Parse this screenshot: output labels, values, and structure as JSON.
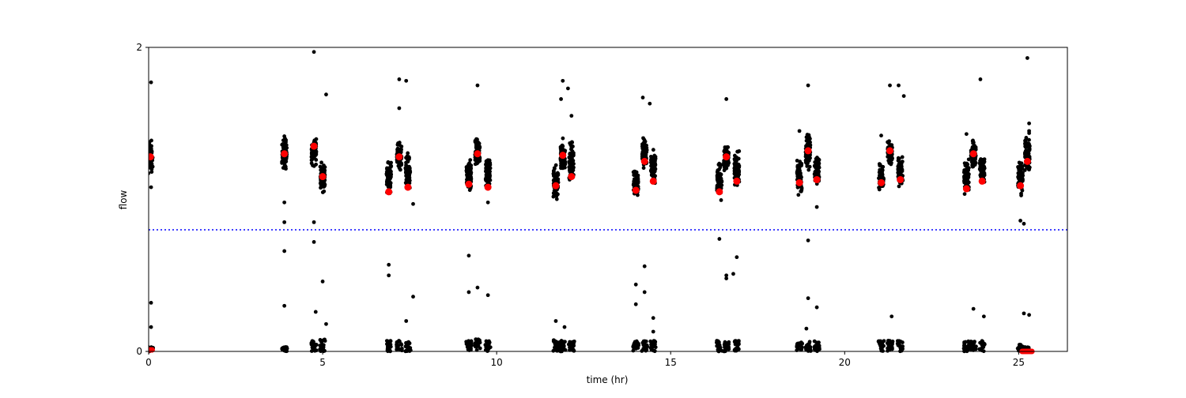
{
  "chart_data": {
    "type": "scatter",
    "title": "",
    "xlabel": "time (hr)",
    "ylabel": "flow",
    "xlim": [
      0,
      26.4
    ],
    "ylim": [
      0,
      2
    ],
    "xticks": [
      0,
      5,
      10,
      15,
      20,
      25
    ],
    "yticks": [
      0,
      2
    ],
    "grid": false,
    "threshold": {
      "y": 0.8,
      "style": "dotted",
      "color": "#0000ff"
    },
    "colors": {
      "raw": "#000000",
      "mean": "#ff0000",
      "axis": "#000000"
    },
    "clusters": [
      {
        "t": 0.05,
        "low": 0,
        "high_mean": 1.28,
        "high_spread": 0.06,
        "mean": 1.28
      },
      {
        "t": 3.9,
        "low": 0,
        "high_mean": 1.3,
        "high_spread": 0.06,
        "mean": 1.3
      },
      {
        "t": 4.75,
        "low": 0.04,
        "high_mean": 1.32,
        "high_spread": 0.05,
        "mean": 1.35
      },
      {
        "t": 5.0,
        "low": 0.05,
        "high_mean": 1.15,
        "high_spread": 0.05,
        "mean": 1.15
      },
      {
        "t": 6.9,
        "low": 0.04,
        "high_mean": 1.15,
        "high_spread": 0.06,
        "mean": 1.05
      },
      {
        "t": 7.2,
        "low": 0.04,
        "high_mean": 1.28,
        "high_spread": 0.05,
        "mean": 1.28
      },
      {
        "t": 7.45,
        "low": 0.04,
        "high_mean": 1.18,
        "high_spread": 0.06,
        "mean": 1.08
      },
      {
        "t": 9.2,
        "low": 0.04,
        "high_mean": 1.15,
        "high_spread": 0.06,
        "mean": 1.1
      },
      {
        "t": 9.45,
        "low": 0.05,
        "high_mean": 1.3,
        "high_spread": 0.06,
        "mean": 1.3
      },
      {
        "t": 9.75,
        "low": 0.04,
        "high_mean": 1.18,
        "high_spread": 0.06,
        "mean": 1.08
      },
      {
        "t": 11.7,
        "low": 0.05,
        "high_mean": 1.1,
        "high_spread": 0.06,
        "mean": 1.09
      },
      {
        "t": 11.9,
        "low": 0.04,
        "high_mean": 1.28,
        "high_spread": 0.06,
        "mean": 1.29
      },
      {
        "t": 12.15,
        "low": 0.04,
        "high_mean": 1.25,
        "high_spread": 0.07,
        "mean": 1.15
      },
      {
        "t": 14.0,
        "low": 0.04,
        "high_mean": 1.12,
        "high_spread": 0.06,
        "mean": 1.06
      },
      {
        "t": 14.25,
        "low": 0.04,
        "high_mean": 1.3,
        "high_spread": 0.06,
        "mean": 1.25
      },
      {
        "t": 14.5,
        "low": 0.04,
        "high_mean": 1.22,
        "high_spread": 0.06,
        "mean": 1.12
      },
      {
        "t": 16.4,
        "low": 0.04,
        "high_mean": 1.12,
        "high_spread": 0.06,
        "mean": 1.05
      },
      {
        "t": 16.6,
        "low": 0.04,
        "high_mean": 1.28,
        "high_spread": 0.05,
        "mean": 1.28
      },
      {
        "t": 16.9,
        "low": 0.04,
        "high_mean": 1.2,
        "high_spread": 0.06,
        "mean": 1.12
      },
      {
        "t": 18.7,
        "low": 0.04,
        "high_mean": 1.15,
        "high_spread": 0.07,
        "mean": 1.11
      },
      {
        "t": 18.95,
        "low": 0.04,
        "high_mean": 1.32,
        "high_spread": 0.06,
        "mean": 1.32
      },
      {
        "t": 19.2,
        "low": 0.04,
        "high_mean": 1.2,
        "high_spread": 0.06,
        "mean": 1.13
      },
      {
        "t": 21.05,
        "low": 0.04,
        "high_mean": 1.15,
        "high_spread": 0.05,
        "mean": 1.11
      },
      {
        "t": 21.3,
        "low": 0.05,
        "high_mean": 1.3,
        "high_spread": 0.04,
        "mean": 1.32
      },
      {
        "t": 21.6,
        "low": 0.04,
        "high_mean": 1.18,
        "high_spread": 0.05,
        "mean": 1.13
      },
      {
        "t": 23.5,
        "low": 0.04,
        "high_mean": 1.15,
        "high_spread": 0.06,
        "mean": 1.07
      },
      {
        "t": 23.7,
        "low": 0.04,
        "high_mean": 1.3,
        "high_spread": 0.05,
        "mean": 1.3
      },
      {
        "t": 23.95,
        "low": 0.04,
        "high_mean": 1.2,
        "high_spread": 0.05,
        "mean": 1.12
      },
      {
        "t": 25.05,
        "low": 0.02,
        "high_mean": 1.15,
        "high_spread": 0.06,
        "mean": 1.09
      },
      {
        "t": 25.25,
        "low": 0.0,
        "high_mean": 1.3,
        "high_spread": 0.07,
        "mean": 1.25
      }
    ],
    "outliers": [
      [
        0.07,
        1.77
      ],
      [
        0.07,
        1.08
      ],
      [
        0.07,
        0.32
      ],
      [
        0.07,
        0.16
      ],
      [
        3.9,
        0.3
      ],
      [
        3.9,
        0.66
      ],
      [
        3.9,
        0.85
      ],
      [
        3.9,
        0.98
      ],
      [
        4.75,
        1.97
      ],
      [
        4.75,
        0.85
      ],
      [
        4.75,
        0.72
      ],
      [
        4.8,
        0.26
      ],
      [
        5.0,
        0.46
      ],
      [
        5.1,
        1.69
      ],
      [
        5.1,
        0.18
      ],
      [
        6.9,
        0.57
      ],
      [
        6.9,
        0.5
      ],
      [
        7.2,
        1.79
      ],
      [
        7.2,
        1.6
      ],
      [
        7.4,
        1.78
      ],
      [
        7.4,
        0.2
      ],
      [
        7.6,
        0.36
      ],
      [
        7.6,
        0.97
      ],
      [
        9.2,
        0.63
      ],
      [
        9.2,
        0.39
      ],
      [
        9.45,
        1.75
      ],
      [
        9.45,
        0.42
      ],
      [
        9.75,
        0.37
      ],
      [
        9.75,
        0.98
      ],
      [
        11.7,
        0.2
      ],
      [
        11.85,
        1.66
      ],
      [
        11.9,
        1.78
      ],
      [
        12.05,
        1.73
      ],
      [
        12.15,
        1.55
      ],
      [
        11.95,
        0.16
      ],
      [
        14.0,
        0.44
      ],
      [
        14.0,
        0.31
      ],
      [
        14.2,
        1.67
      ],
      [
        14.25,
        0.56
      ],
      [
        14.25,
        0.39
      ],
      [
        14.4,
        1.63
      ],
      [
        14.5,
        0.13
      ],
      [
        14.5,
        0.22
      ],
      [
        16.4,
        0.74
      ],
      [
        16.6,
        1.66
      ],
      [
        16.6,
        0.5
      ],
      [
        16.6,
        0.48
      ],
      [
        16.8,
        0.51
      ],
      [
        16.9,
        0.62
      ],
      [
        18.95,
        1.75
      ],
      [
        18.95,
        0.73
      ],
      [
        18.95,
        0.35
      ],
      [
        18.9,
        0.15
      ],
      [
        19.2,
        0.95
      ],
      [
        19.2,
        0.29
      ],
      [
        18.7,
        1.45
      ],
      [
        21.05,
        1.42
      ],
      [
        21.3,
        1.75
      ],
      [
        21.35,
        0.23
      ],
      [
        21.55,
        1.75
      ],
      [
        21.7,
        1.68
      ],
      [
        23.5,
        1.43
      ],
      [
        23.7,
        0.28
      ],
      [
        23.9,
        1.79
      ],
      [
        24.0,
        0.23
      ],
      [
        25.05,
        0.86
      ],
      [
        25.15,
        0.84
      ],
      [
        25.15,
        0.25
      ],
      [
        25.3,
        0.24
      ],
      [
        25.25,
        1.93
      ],
      [
        25.3,
        1.5
      ],
      [
        25.3,
        1.45
      ]
    ]
  }
}
